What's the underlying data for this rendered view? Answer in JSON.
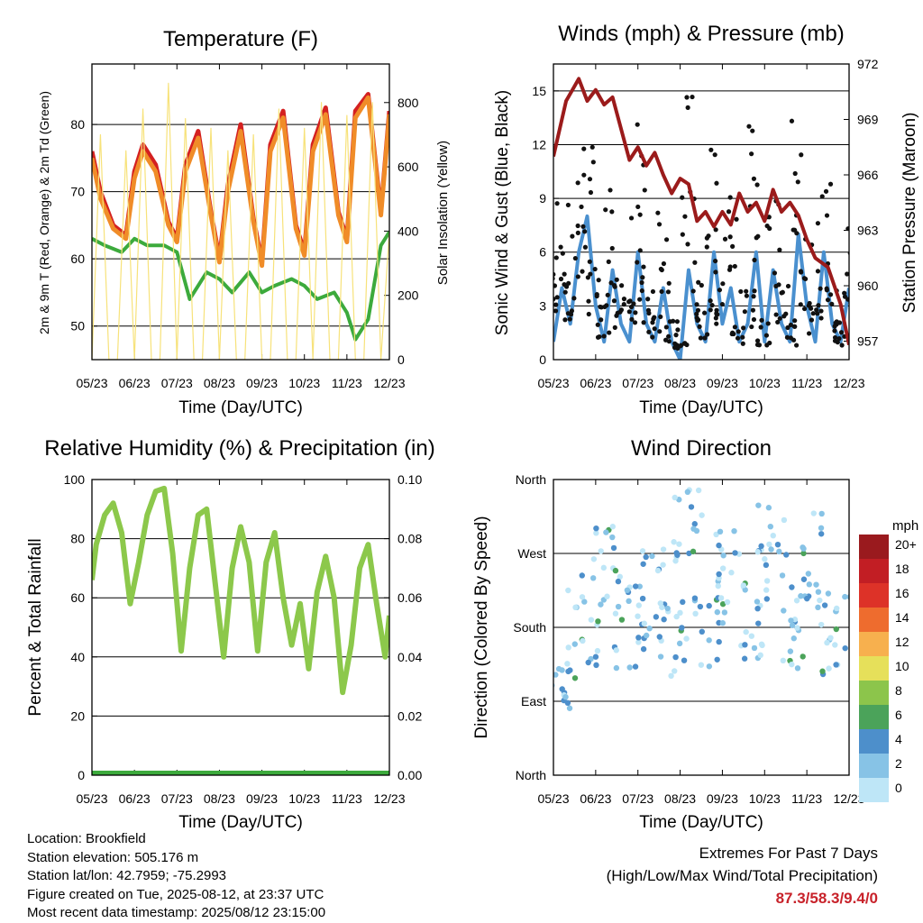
{
  "theme": {
    "extremes_color": "#c8222a"
  },
  "info": {
    "location": "Location: Brookfield",
    "elevation": "Station elevation: 505.176 m",
    "latlon": "Station lat/lon: 42.7959; -75.2993",
    "created": "Figure created on Tue, 2025-08-12, at 23:37 UTC",
    "recent": "Most recent data timestamp: 2025/08/12 23:15:00"
  },
  "extremes": {
    "title": "Extremes For Past 7 Days",
    "subtitle": "(High/Low/Max Wind/Total Precipitation)",
    "values": "87.3/58.3/9.4/0"
  },
  "chart_data": [
    {
      "id": "temperature",
      "type": "line",
      "title": "Temperature (F)",
      "xlabel": "Time (Day/UTC)",
      "ylabel": "2m & 9m T (Red, Orange) & 2m Td (Green)",
      "y2label": "Solar Insolation (Yellow)",
      "x_ticks": [
        "05/23",
        "06/23",
        "07/23",
        "08/23",
        "09/23",
        "10/23",
        "11/23",
        "12/23"
      ],
      "ylim": [
        45,
        89
      ],
      "y_ticks": [
        50,
        60,
        70,
        80
      ],
      "y2lim": [
        0,
        920
      ],
      "y2_ticks": [
        0,
        200,
        400,
        600,
        800
      ],
      "grid": "horizontal",
      "series": [
        {
          "color": "#d42020",
          "axis": "left",
          "x": [
            0,
            0.2,
            0.5,
            0.8,
            1.0,
            1.2,
            1.5,
            1.8,
            2.0,
            2.2,
            2.5,
            2.8,
            3.0,
            3.2,
            3.5,
            3.8,
            4.0,
            4.2,
            4.5,
            4.8,
            5.0,
            5.2,
            5.5,
            5.8,
            6.0,
            6.2,
            6.5,
            6.8,
            7.0
          ],
          "y": [
            76,
            70,
            65,
            63.5,
            73,
            77,
            74,
            65.5,
            63,
            74,
            79,
            67,
            60,
            71,
            80,
            66,
            59.5,
            77,
            82,
            65,
            61,
            77,
            82.5,
            67,
            63,
            82,
            84.5,
            67,
            82
          ]
        },
        {
          "color": "#f08c28",
          "axis": "left",
          "x": [
            0,
            0.2,
            0.5,
            0.8,
            1.0,
            1.2,
            1.5,
            1.8,
            2.0,
            2.2,
            2.5,
            2.8,
            3.0,
            3.2,
            3.5,
            3.8,
            4.0,
            4.2,
            4.5,
            4.8,
            5.0,
            5.2,
            5.5,
            5.8,
            6.0,
            6.2,
            6.5,
            6.8,
            7.0
          ],
          "y": [
            75,
            69,
            64.5,
            63,
            72,
            76,
            73,
            65,
            62.5,
            73,
            78,
            66.5,
            59.5,
            70,
            79,
            65.5,
            59,
            76,
            81,
            64.5,
            60.5,
            76,
            81.5,
            66.5,
            62.5,
            81,
            84,
            66.5,
            81.5
          ]
        },
        {
          "color": "#3caa3c",
          "axis": "left",
          "x": [
            0,
            0.3,
            0.7,
            1.0,
            1.3,
            1.7,
            2.0,
            2.3,
            2.7,
            3.0,
            3.3,
            3.7,
            4.0,
            4.3,
            4.7,
            5.0,
            5.3,
            5.7,
            6.0,
            6.2,
            6.5,
            6.8,
            7.0
          ],
          "y": [
            63,
            62,
            61,
            63,
            62,
            62,
            61,
            54,
            58,
            57,
            55,
            58,
            55,
            56,
            57,
            56,
            54,
            55,
            52,
            48,
            51,
            62,
            64
          ]
        },
        {
          "color": "#f7e27a",
          "axis": "right",
          "x": [
            0,
            0.2,
            0.4,
            0.6,
            0.8,
            1.0,
            1.2,
            1.4,
            1.6,
            1.8,
            2.0,
            2.2,
            2.4,
            2.6,
            2.8,
            3.0,
            3.2,
            3.4,
            3.6,
            3.8,
            4.0,
            4.2,
            4.4,
            4.6,
            4.8,
            5.0,
            5.2,
            5.4,
            5.6,
            5.8,
            6.0,
            6.2,
            6.4,
            6.6,
            6.8,
            7.0
          ],
          "y": [
            0,
            700,
            0,
            0,
            650,
            0,
            780,
            0,
            0,
            860,
            0,
            750,
            0,
            0,
            720,
            0,
            650,
            0,
            0,
            700,
            0,
            0,
            780,
            0,
            0,
            720,
            0,
            800,
            0,
            0,
            760,
            0,
            0,
            800,
            0,
            400
          ]
        }
      ]
    },
    {
      "id": "winds",
      "type": "line",
      "title": "Winds (mph) & Pressure (mb)",
      "xlabel": "Time (Day/UTC)",
      "ylabel": "Sonic Wind & Gust (Blue, Black)",
      "y2label": "Station Pressure (Maroon)",
      "x_ticks": [
        "05/23",
        "06/23",
        "07/23",
        "08/23",
        "09/23",
        "10/23",
        "11/23",
        "12/23"
      ],
      "ylim": [
        0,
        16.5
      ],
      "y_ticks": [
        0,
        3,
        6,
        9,
        12,
        15
      ],
      "y2lim": [
        956,
        972
      ],
      "y2_ticks": [
        957,
        960,
        963,
        966,
        969,
        972
      ],
      "grid": "horizontal",
      "series": [
        {
          "color": "#4a90cf",
          "axis": "left",
          "x": [
            0,
            0.2,
            0.4,
            0.6,
            0.8,
            1.0,
            1.2,
            1.4,
            1.6,
            1.8,
            2.0,
            2.2,
            2.4,
            2.6,
            2.8,
            3.0,
            3.2,
            3.4,
            3.6,
            3.8,
            4.0,
            4.2,
            4.4,
            4.6,
            4.8,
            5.0,
            5.2,
            5.4,
            5.6,
            5.8,
            6.0,
            6.2,
            6.4,
            6.6,
            6.8,
            7.0
          ],
          "y": [
            1,
            4,
            2,
            6,
            8,
            3,
            1,
            5,
            2,
            1,
            6,
            2,
            1,
            4,
            1,
            0,
            5,
            2,
            1,
            6,
            2,
            4,
            1,
            2,
            6,
            1,
            5,
            2,
            1,
            7,
            3,
            1,
            6,
            2,
            1,
            4
          ]
        },
        {
          "color": "#111111",
          "axis": "left",
          "x": [
            0,
            0.2,
            0.4,
            0.6,
            0.8,
            1.0,
            1.2,
            1.4,
            1.6,
            1.8,
            2.0,
            2.2,
            2.4,
            2.6,
            2.8,
            3.0,
            3.2,
            3.4,
            3.6,
            3.8,
            4.0,
            4.2,
            4.4,
            4.6,
            4.8,
            5.0,
            5.2,
            5.4,
            5.6,
            5.8,
            6.0,
            6.2,
            6.4,
            6.6,
            6.8,
            7.0
          ],
          "y": [
            6,
            8,
            4,
            10,
            11,
            5,
            3,
            9,
            4,
            3,
            12,
            5,
            3,
            9,
            2,
            1,
            14,
            5,
            3,
            11,
            4,
            9,
            2,
            4,
            12,
            2,
            10,
            4,
            2,
            14,
            6,
            3,
            9,
            4,
            2,
            7
          ]
        },
        {
          "color": "#9b1b1b",
          "axis": "right",
          "x": [
            0,
            0.3,
            0.6,
            0.8,
            1.0,
            1.2,
            1.4,
            1.6,
            1.8,
            2.0,
            2.2,
            2.4,
            2.6,
            2.8,
            3.0,
            3.2,
            3.4,
            3.6,
            3.8,
            4.0,
            4.2,
            4.4,
            4.6,
            4.8,
            5.0,
            5.2,
            5.4,
            5.6,
            5.8,
            6.0,
            6.2,
            6.5,
            6.8,
            7.0
          ],
          "y": [
            967,
            970,
            971.2,
            970,
            970.6,
            969.8,
            970.2,
            968.5,
            966.8,
            967.5,
            966.5,
            967.2,
            966,
            965,
            965.8,
            965.5,
            963.5,
            964,
            963.2,
            964,
            963.3,
            965,
            964,
            964.5,
            963.5,
            965.2,
            964,
            964.5,
            963.8,
            962.5,
            961.5,
            961,
            959,
            956.8
          ]
        }
      ]
    },
    {
      "id": "humidity",
      "type": "line",
      "title": "Relative Humidity (%) & Precipitation (in)",
      "xlabel": "Time (Day/UTC)",
      "ylabel": "Percent & Total Rainfall",
      "x_ticks": [
        "05/23",
        "06/23",
        "07/23",
        "08/23",
        "09/23",
        "10/23",
        "11/23",
        "12/23"
      ],
      "ylim": [
        0,
        100
      ],
      "y_ticks": [
        0,
        20,
        40,
        60,
        80,
        100
      ],
      "y2lim": [
        0,
        0.1
      ],
      "y2_ticks": [
        "0.00",
        "0.02",
        "0.04",
        "0.06",
        "0.08",
        "0.10"
      ],
      "grid": "horizontal",
      "series": [
        {
          "color": "#8cc84b",
          "axis": "left",
          "x": [
            0,
            0.1,
            0.3,
            0.5,
            0.7,
            0.9,
            1.1,
            1.3,
            1.5,
            1.7,
            1.9,
            2.1,
            2.3,
            2.5,
            2.7,
            2.9,
            3.1,
            3.3,
            3.5,
            3.7,
            3.9,
            4.1,
            4.3,
            4.5,
            4.7,
            4.9,
            5.1,
            5.3,
            5.5,
            5.7,
            5.9,
            6.1,
            6.3,
            6.5,
            6.7,
            6.9,
            7.0
          ],
          "y": [
            66,
            78,
            88,
            92,
            82,
            58,
            72,
            88,
            96,
            97,
            75,
            42,
            70,
            88,
            90,
            65,
            40,
            70,
            84,
            72,
            42,
            72,
            82,
            60,
            44,
            58,
            36,
            62,
            74,
            60,
            28,
            44,
            70,
            78,
            58,
            40,
            54
          ]
        },
        {
          "color": "#3caa3c",
          "axis": "right",
          "x": [
            0,
            7
          ],
          "y": [
            0,
            0
          ]
        }
      ]
    },
    {
      "id": "direction",
      "type": "scatter",
      "title": "Wind Direction",
      "xlabel": "Time (Day/UTC)",
      "ylabel": "Direction (Colored By Speed)",
      "x_ticks": [
        "05/23",
        "06/23",
        "07/23",
        "08/23",
        "09/23",
        "10/23",
        "11/23",
        "12/23"
      ],
      "ylim": [
        0,
        360
      ],
      "y_ticks": [
        "North",
        "East",
        "South",
        "West",
        "North"
      ],
      "legend_title": "mph",
      "legend": [
        "0",
        "2",
        "4",
        "6",
        "8",
        "10",
        "12",
        "14",
        "16",
        "18",
        "20+"
      ],
      "legend_colors": [
        "#bee6f7",
        "#87c3e6",
        "#4d8fcb",
        "#4ba35a",
        "#8cc54b",
        "#e6e05a",
        "#f7b04e",
        "#ee6c2e",
        "#dd3228",
        "#c21e24",
        "#9a1a1e"
      ],
      "legend_placement": "right",
      "speed_bins": [
        0,
        2,
        4,
        6
      ],
      "clusters": [
        {
          "x": 0.2,
          "y": 110,
          "spread": 30
        },
        {
          "x": 0.7,
          "y": 190,
          "spread": 60
        },
        {
          "x": 1.3,
          "y": 250,
          "spread": 60
        },
        {
          "x": 1.8,
          "y": 180,
          "spread": 50
        },
        {
          "x": 2.3,
          "y": 220,
          "spread": 60
        },
        {
          "x": 2.8,
          "y": 170,
          "spread": 50
        },
        {
          "x": 3.2,
          "y": 300,
          "spread": 50
        },
        {
          "x": 3.7,
          "y": 180,
          "spread": 60
        },
        {
          "x": 4.2,
          "y": 260,
          "spread": 50
        },
        {
          "x": 4.7,
          "y": 190,
          "spread": 50
        },
        {
          "x": 5.2,
          "y": 280,
          "spread": 50
        },
        {
          "x": 5.7,
          "y": 180,
          "spread": 60
        },
        {
          "x": 6.2,
          "y": 260,
          "spread": 60
        },
        {
          "x": 6.7,
          "y": 170,
          "spread": 50
        }
      ]
    }
  ]
}
